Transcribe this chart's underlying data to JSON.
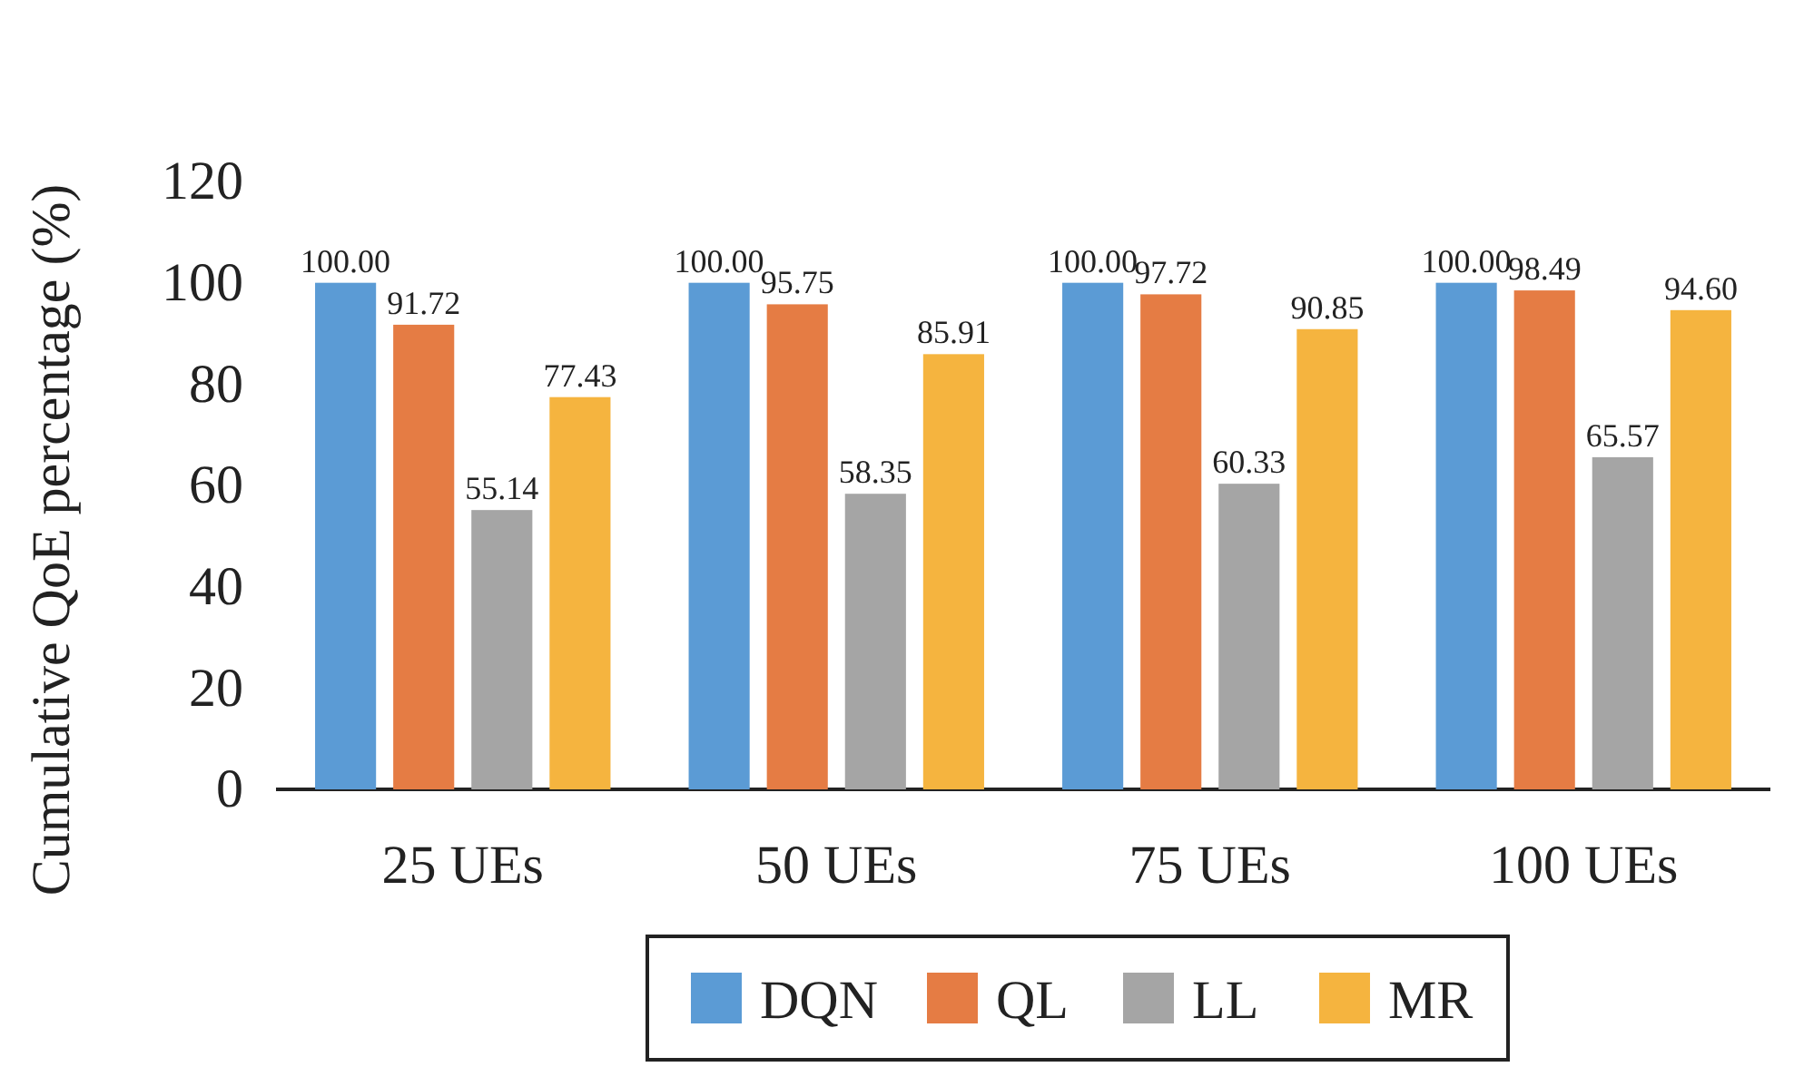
{
  "chart_data": {
    "type": "bar",
    "ylabel": "Cumulative QoE percentage (%)",
    "categories": [
      "25 UEs",
      "50 UEs",
      "75 UEs",
      "100 UEs"
    ],
    "series": [
      {
        "name": "DQN",
        "color": "#5b9bd5",
        "values": [
          100.0,
          100.0,
          100.0,
          100.0
        ],
        "value_labels": [
          "100.00",
          "100.00",
          "100.00",
          "100.00"
        ]
      },
      {
        "name": "QL",
        "color": "#e57c44",
        "values": [
          91.72,
          95.75,
          97.72,
          98.49
        ],
        "value_labels": [
          "91.72",
          "95.75",
          "97.72",
          "98.49"
        ]
      },
      {
        "name": "LL",
        "color": "#a5a5a5",
        "values": [
          55.14,
          58.35,
          60.33,
          65.57
        ],
        "value_labels": [
          "55.14",
          "58.35",
          "60.33",
          "65.57"
        ]
      },
      {
        "name": "MR",
        "color": "#f5b43f",
        "values": [
          77.43,
          85.91,
          90.85,
          94.6
        ],
        "value_labels": [
          "77.43",
          "85.91",
          "90.85",
          "94.60"
        ]
      }
    ],
    "ylim": [
      0,
      120
    ],
    "yticks": [
      0,
      20,
      40,
      60,
      80,
      100,
      120
    ],
    "grid": false,
    "legend": "bottom"
  }
}
